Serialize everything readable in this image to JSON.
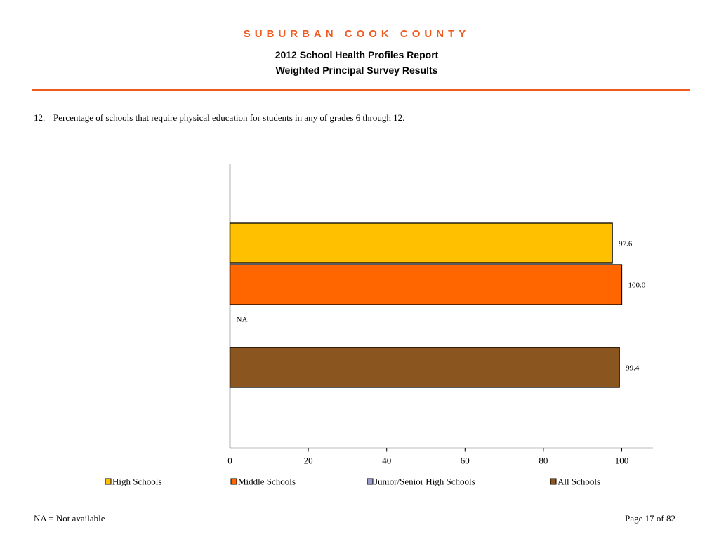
{
  "header": {
    "county": "SUBURBAN COOK COUNTY",
    "title": "2012 School Health Profiles Report",
    "subtitle": "Weighted Principal Survey Results",
    "rule_color": "#f05a1e"
  },
  "question": {
    "number": "12.",
    "text": "Percentage of schools that require physical education for students in any of grades 6 through 12."
  },
  "chart_data": {
    "type": "bar",
    "orientation": "horizontal",
    "categories": [
      "High Schools",
      "Middle Schools",
      "Junior/Senior High Schools",
      "All Schools"
    ],
    "values": [
      97.6,
      100.0,
      null,
      99.4
    ],
    "value_labels": [
      "97.6",
      "100.0",
      "NA",
      "99.4"
    ],
    "colors": [
      "#ffc000",
      "#ff6600",
      "#9999cc",
      "#8b5520"
    ],
    "xlim": [
      0,
      100
    ],
    "xticks": [
      "0",
      "20",
      "40",
      "60",
      "80",
      "100"
    ],
    "legend": [
      "High Schools",
      "Middle Schools",
      "Junior/Senior High Schools",
      "All Schools"
    ],
    "legend_position": "bottom",
    "grid": false
  },
  "footer": {
    "note": "NA = Not available",
    "page": "Page 17 of 82"
  }
}
